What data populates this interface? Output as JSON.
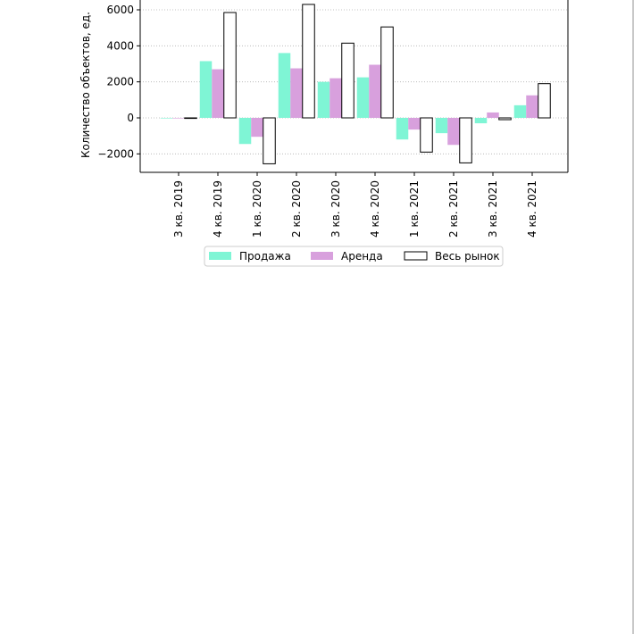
{
  "chart_data": {
    "type": "bar",
    "categories": [
      "3 кв. 2019",
      "4 кв. 2019",
      "1 кв. 2020",
      "2 кв. 2020",
      "3 кв. 2020",
      "4 кв. 2020",
      "1 кв. 2021",
      "2 кв. 2021",
      "3 кв. 2021",
      "4 кв. 2021"
    ],
    "series": [
      {
        "name": "Продажа",
        "color": "#7ff5d5",
        "outline": false,
        "values": [
          0,
          3150,
          -1450,
          3600,
          2000,
          2250,
          -1200,
          -850,
          -300,
          700
        ]
      },
      {
        "name": "Аренда",
        "color": "#d8a0dd",
        "outline": false,
        "values": [
          0,
          2700,
          -1050,
          2750,
          2200,
          2950,
          -650,
          -1500,
          300,
          1250
        ]
      },
      {
        "name": "Весь рынок",
        "color": "#ffffff",
        "outline": true,
        "values": [
          -30,
          5850,
          -2550,
          6300,
          4150,
          5050,
          -1900,
          -2500,
          -100,
          1900
        ]
      }
    ],
    "ylabel": "Количество объектов, ед.",
    "yticks": [
      -2000,
      0,
      2000,
      4000,
      6000
    ],
    "ylim": [
      -3050,
      6350
    ],
    "grid": "horizontal dotted",
    "legend": "below"
  }
}
